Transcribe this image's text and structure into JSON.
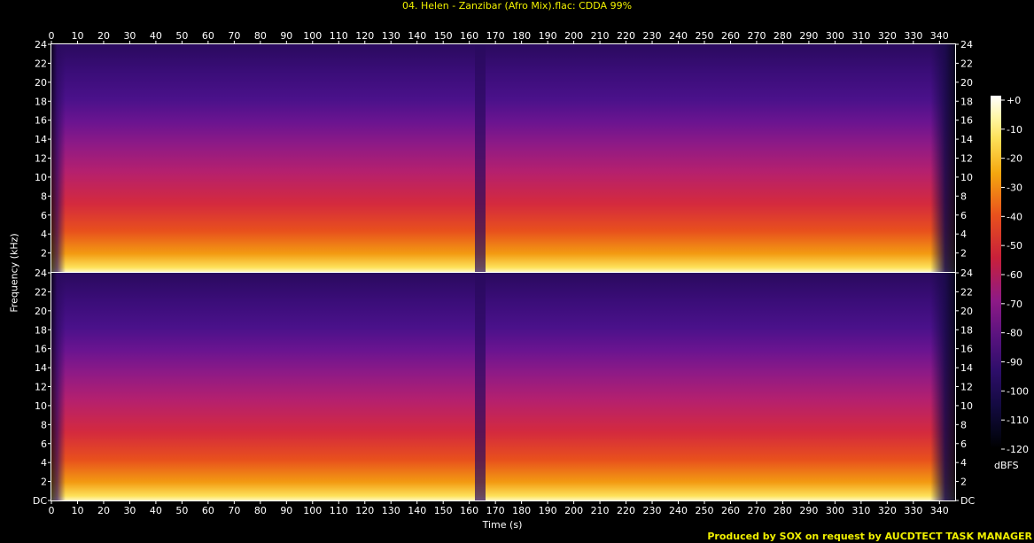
{
  "title": "04. Helen - Zanzibar (Afro Mix).flac: CDDA 99%",
  "credit": "Produced by SOX on request by AUCDTECT TASK MANAGER",
  "chart_data": {
    "type": "heatmap",
    "xlabel": "Time (s)",
    "ylabel": "Frequency (kHz)",
    "xlim": [
      0,
      346
    ],
    "ylim": [
      0,
      24
    ],
    "x_ticks": [
      0,
      10,
      20,
      30,
      40,
      50,
      60,
      70,
      80,
      90,
      100,
      110,
      120,
      130,
      140,
      150,
      160,
      170,
      180,
      190,
      200,
      210,
      220,
      230,
      240,
      250,
      260,
      270,
      280,
      290,
      300,
      310,
      320,
      330,
      340
    ],
    "y_tick_labels": [
      "DC",
      "2",
      "4",
      "6",
      "8",
      "10",
      "12",
      "14",
      "16",
      "18",
      "20",
      "22",
      "24"
    ],
    "channels": 2,
    "colorbar": {
      "unit": "dBFS",
      "labels": [
        "+0",
        "-10",
        "-20",
        "-30",
        "-40",
        "-50",
        "-60",
        "-70",
        "-80",
        "-90",
        "-100",
        "-110",
        "-120"
      ],
      "range": [
        -120,
        0
      ]
    },
    "colors": {
      "title": "#f0f000",
      "credit": "#f0f000",
      "background": "#000000"
    }
  }
}
